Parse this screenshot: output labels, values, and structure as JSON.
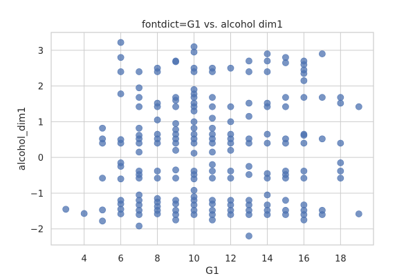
{
  "chart_data": {
    "type": "scatter",
    "title": "fontdict=G1 vs. alcohol dim1",
    "xlabel": "G1",
    "ylabel": "alcohol_dim1",
    "xlim": [
      2.2,
      19.8
    ],
    "ylim": [
      -2.45,
      3.5
    ],
    "xticks": [
      4,
      6,
      8,
      10,
      12,
      14,
      16,
      18
    ],
    "yticks": [
      -2,
      -1,
      0,
      1,
      2,
      3
    ],
    "ytick_labels": [
      "−2",
      "−1",
      "0",
      "1",
      "2",
      "3"
    ],
    "grid": true,
    "color": "#4c72b0",
    "points": [
      [
        3,
        -1.45
      ],
      [
        4,
        -1.57
      ],
      [
        5,
        0.82
      ],
      [
        5,
        0.52
      ],
      [
        5,
        0.4
      ],
      [
        5,
        -0.58
      ],
      [
        5,
        -1.47
      ],
      [
        5,
        -1.78
      ],
      [
        6,
        3.22
      ],
      [
        6,
        2.8
      ],
      [
        6,
        2.4
      ],
      [
        6,
        1.78
      ],
      [
        6,
        0.5
      ],
      [
        6,
        0.4
      ],
      [
        6,
        -0.15
      ],
      [
        6,
        -0.25
      ],
      [
        6,
        -0.6
      ],
      [
        6,
        -1.2
      ],
      [
        6,
        -1.3
      ],
      [
        6,
        -1.45
      ],
      [
        6,
        -1.58
      ],
      [
        7,
        2.4
      ],
      [
        7,
        1.95
      ],
      [
        7,
        1.68
      ],
      [
        7,
        1.42
      ],
      [
        7,
        0.82
      ],
      [
        7,
        0.62
      ],
      [
        7,
        0.52
      ],
      [
        7,
        0.4
      ],
      [
        7,
        0.15
      ],
      [
        7,
        -0.38
      ],
      [
        7,
        -0.48
      ],
      [
        7,
        -0.58
      ],
      [
        7,
        -1.05
      ],
      [
        7,
        -1.2
      ],
      [
        7,
        -1.33
      ],
      [
        7,
        -1.48
      ],
      [
        7,
        -1.6
      ],
      [
        7,
        -1.92
      ],
      [
        8,
        2.5
      ],
      [
        8,
        2.4
      ],
      [
        8,
        1.52
      ],
      [
        8,
        1.42
      ],
      [
        8,
        1.05
      ],
      [
        8,
        0.65
      ],
      [
        8,
        0.52
      ],
      [
        8,
        0.4
      ],
      [
        8,
        -0.38
      ],
      [
        8,
        -0.58
      ],
      [
        8,
        -1.15
      ],
      [
        8,
        -1.25
      ],
      [
        8,
        -1.37
      ],
      [
        8,
        -1.48
      ],
      [
        8,
        -1.58
      ],
      [
        9,
        2.7
      ],
      [
        9,
        2.68
      ],
      [
        9,
        1.68
      ],
      [
        9,
        1.6
      ],
      [
        9,
        1.42
      ],
      [
        9,
        0.95
      ],
      [
        9,
        0.78
      ],
      [
        9,
        0.65
      ],
      [
        9,
        0.52
      ],
      [
        9,
        0.4
      ],
      [
        9,
        0.2
      ],
      [
        9,
        -0.35
      ],
      [
        9,
        -0.58
      ],
      [
        9,
        -1.2
      ],
      [
        9,
        -1.3
      ],
      [
        9,
        -1.48
      ],
      [
        9,
        -1.6
      ],
      [
        9,
        -1.75
      ],
      [
        10,
        3.1
      ],
      [
        10,
        2.95
      ],
      [
        10,
        2.5
      ],
      [
        10,
        2.4
      ],
      [
        10,
        1.9
      ],
      [
        10,
        1.78
      ],
      [
        10,
        1.68
      ],
      [
        10,
        1.52
      ],
      [
        10,
        1.42
      ],
      [
        10,
        1.3
      ],
      [
        10,
        1.0
      ],
      [
        10,
        0.82
      ],
      [
        10,
        0.65
      ],
      [
        10,
        0.52
      ],
      [
        10,
        0.4
      ],
      [
        10,
        0.12
      ],
      [
        10,
        -0.38
      ],
      [
        10,
        -0.48
      ],
      [
        10,
        -0.6
      ],
      [
        10,
        -0.92
      ],
      [
        10,
        -1.1
      ],
      [
        10,
        -1.2
      ],
      [
        10,
        -1.33
      ],
      [
        10,
        -1.48
      ],
      [
        10,
        -1.6
      ],
      [
        11,
        2.5
      ],
      [
        11,
        2.4
      ],
      [
        11,
        1.68
      ],
      [
        11,
        1.42
      ],
      [
        11,
        1.1
      ],
      [
        11,
        0.82
      ],
      [
        11,
        0.65
      ],
      [
        11,
        0.52
      ],
      [
        11,
        0.4
      ],
      [
        11,
        0.15
      ],
      [
        11,
        -0.2
      ],
      [
        11,
        -0.38
      ],
      [
        11,
        -0.58
      ],
      [
        11,
        -1.2
      ],
      [
        11,
        -1.3
      ],
      [
        11,
        -1.48
      ],
      [
        11,
        -1.6
      ],
      [
        11,
        -1.75
      ],
      [
        12,
        2.5
      ],
      [
        12,
        1.42
      ],
      [
        12,
        1.0
      ],
      [
        12,
        0.65
      ],
      [
        12,
        0.52
      ],
      [
        12,
        0.4
      ],
      [
        12,
        0.2
      ],
      [
        12,
        -0.38
      ],
      [
        12,
        -0.58
      ],
      [
        12,
        -1.2
      ],
      [
        12,
        -1.33
      ],
      [
        12,
        -1.48
      ],
      [
        12,
        -1.6
      ],
      [
        13,
        2.7
      ],
      [
        13,
        2.4
      ],
      [
        13,
        1.52
      ],
      [
        13,
        1.15
      ],
      [
        13,
        0.52
      ],
      [
        13,
        0.4
      ],
      [
        13,
        -0.25
      ],
      [
        13,
        -0.48
      ],
      [
        13,
        -1.2
      ],
      [
        13,
        -1.33
      ],
      [
        13,
        -1.48
      ],
      [
        13,
        -1.6
      ],
      [
        13,
        -2.2
      ],
      [
        14,
        2.9
      ],
      [
        14,
        2.7
      ],
      [
        14,
        2.4
      ],
      [
        14,
        1.52
      ],
      [
        14,
        1.42
      ],
      [
        14,
        0.65
      ],
      [
        14,
        0.4
      ],
      [
        14,
        -0.45
      ],
      [
        14,
        -0.58
      ],
      [
        14,
        -1.05
      ],
      [
        14,
        -1.33
      ],
      [
        14,
        -1.48
      ],
      [
        14,
        -1.6
      ],
      [
        15,
        2.8
      ],
      [
        15,
        2.65
      ],
      [
        15,
        1.68
      ],
      [
        15,
        1.42
      ],
      [
        15,
        0.52
      ],
      [
        15,
        0.4
      ],
      [
        15,
        -0.38
      ],
      [
        15,
        -0.48
      ],
      [
        15,
        -0.58
      ],
      [
        15,
        -1.2
      ],
      [
        15,
        -1.48
      ],
      [
        15,
        -1.6
      ],
      [
        16,
        2.7
      ],
      [
        16,
        2.6
      ],
      [
        16,
        2.45
      ],
      [
        16,
        2.35
      ],
      [
        16,
        2.15
      ],
      [
        16,
        1.68
      ],
      [
        16,
        0.65
      ],
      [
        16,
        0.62
      ],
      [
        16,
        0.4
      ],
      [
        16,
        -0.38
      ],
      [
        16,
        -0.58
      ],
      [
        16,
        -1.33
      ],
      [
        16,
        -1.48
      ],
      [
        16,
        -1.6
      ],
      [
        16,
        -1.75
      ],
      [
        17,
        2.9
      ],
      [
        17,
        1.68
      ],
      [
        17,
        0.52
      ],
      [
        17,
        -1.48
      ],
      [
        17,
        -1.6
      ],
      [
        18,
        1.68
      ],
      [
        18,
        1.52
      ],
      [
        18,
        0.4
      ],
      [
        18,
        -0.15
      ],
      [
        18,
        -0.38
      ],
      [
        18,
        -0.58
      ],
      [
        19,
        1.42
      ],
      [
        19,
        -1.58
      ]
    ]
  }
}
